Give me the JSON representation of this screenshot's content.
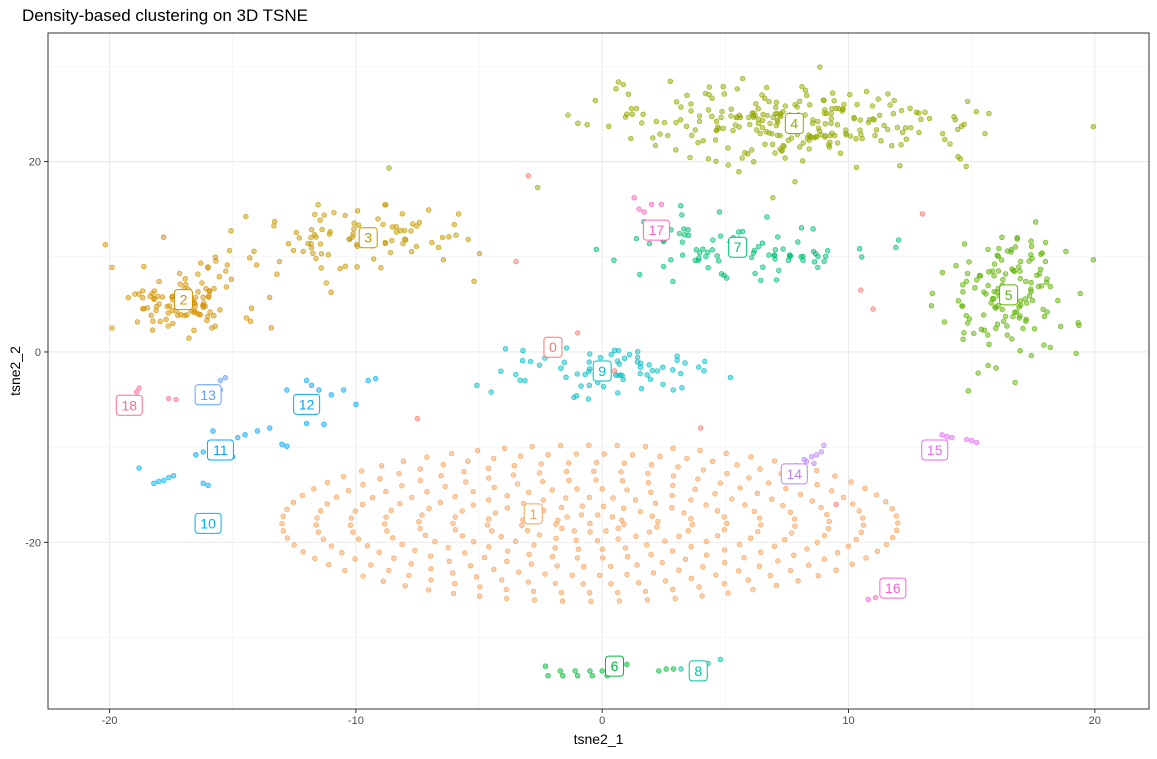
{
  "chart_data": {
    "type": "scatter",
    "title": "Density-based clustering on 3D TSNE",
    "xlabel": "tsne2_1",
    "ylabel": "tsne2_2",
    "xlim": [
      -22.5,
      22.2
    ],
    "ylim": [
      -37.5,
      33.5
    ],
    "xticks": [
      -20,
      -10,
      0,
      10,
      20
    ],
    "yticks": [
      -20,
      0,
      20
    ],
    "xtick_labels": [
      "-20",
      "-10",
      "0",
      "10",
      "20"
    ],
    "ytick_labels": [
      "-20",
      "0",
      "20"
    ],
    "grid": true,
    "legend": "none",
    "clusters": [
      {
        "id": "0",
        "label": "0",
        "color": "#F8766D",
        "center": [
          -2,
          0.5
        ],
        "points": [
          [
            -3,
            18.5
          ],
          [
            -3.5,
            9.5
          ],
          [
            -1,
            2
          ],
          [
            -7.5,
            -7
          ],
          [
            4,
            -8
          ],
          [
            10.5,
            6.5
          ],
          [
            11,
            4.5
          ],
          [
            9.5,
            -16
          ],
          [
            13,
            14.5
          ],
          [
            0.5,
            -2
          ]
        ]
      },
      {
        "id": "1",
        "label": "1",
        "color": "#F8A055",
        "ellipse": {
          "cx": -0.5,
          "cy": -18,
          "rx": 12.5,
          "ry": 8.2
        },
        "center": [
          -2.8,
          -17
        ]
      },
      {
        "id": "2",
        "label": "2",
        "color": "#D39200",
        "center": [
          -17,
          5.5
        ],
        "spread": [
          2.8,
          3.6
        ],
        "n": 110
      },
      {
        "id": "3",
        "label": "3",
        "color": "#C49A00",
        "center": [
          -9.5,
          12
        ],
        "spread": [
          4.5,
          3.5
        ],
        "n": 90
      },
      {
        "id": "4",
        "label": "4",
        "color": "#93AA00",
        "center": [
          7.8,
          24
        ],
        "spread": [
          7,
          3.5
        ],
        "n": 260
      },
      {
        "id": "5",
        "label": "5",
        "color": "#5EB300",
        "center": [
          16.5,
          6
        ],
        "spread": [
          2.3,
          7
        ],
        "n": 140
      },
      {
        "id": "6",
        "label": "6",
        "color": "#00BA38",
        "center": [
          0.5,
          -33
        ],
        "points": [
          [
            -2.3,
            -33
          ],
          [
            -1.7,
            -33.5
          ],
          [
            -1.1,
            -33.5
          ],
          [
            -0.5,
            -33.5
          ],
          [
            0,
            -33.5
          ],
          [
            0.5,
            -33
          ],
          [
            1,
            -32.8
          ],
          [
            -2.2,
            -34
          ],
          [
            -1.6,
            -34
          ],
          [
            -1,
            -34
          ],
          [
            -0.4,
            -34
          ],
          [
            0.2,
            -34
          ],
          [
            2.3,
            -33.5
          ],
          [
            2.6,
            -33.3
          ],
          [
            2.9,
            -33.3
          ]
        ]
      },
      {
        "id": "7",
        "label": "7",
        "color": "#00BF74",
        "center": [
          5.5,
          11
        ],
        "spread": [
          4.5,
          2.8
        ],
        "n": 90
      },
      {
        "id": "8",
        "label": "8",
        "color": "#00C19F",
        "center": [
          3.9,
          -33.5
        ],
        "points": [
          [
            3.8,
            -33
          ],
          [
            4.3,
            -32.7
          ],
          [
            4.8,
            -32.3
          ],
          [
            3.2,
            -33.3
          ]
        ]
      },
      {
        "id": "9",
        "label": "9",
        "color": "#00BFC4",
        "center": [
          0,
          -2
        ],
        "spread": [
          3.8,
          2.5
        ],
        "n": 70
      },
      {
        "id": "10",
        "label": "10",
        "color": "#00B4F0",
        "center": [
          -16,
          -18
        ],
        "points": [
          [
            -18.2,
            -13.8
          ],
          [
            -18,
            -13.6
          ],
          [
            -17.8,
            -13.5
          ],
          [
            -17.6,
            -13.2
          ],
          [
            -17.4,
            -13
          ],
          [
            -18.8,
            -12.2
          ],
          [
            -16.2,
            -13.8
          ],
          [
            -16,
            -14
          ]
        ]
      },
      {
        "id": "11",
        "label": "11",
        "color": "#00A8FF",
        "center": [
          -15.5,
          -10.3
        ],
        "points": [
          [
            -16.5,
            -10.8
          ],
          [
            -16.2,
            -10.5
          ],
          [
            -15.8,
            -10
          ],
          [
            -15.3,
            -9.5
          ],
          [
            -14.8,
            -9
          ],
          [
            -14.5,
            -8.7
          ],
          [
            -14,
            -8.3
          ],
          [
            -13.5,
            -8
          ],
          [
            -15,
            -11
          ],
          [
            -13,
            -9.7
          ],
          [
            -12.8,
            -9.9
          ],
          [
            -15.8,
            -8.3
          ]
        ]
      },
      {
        "id": "12",
        "label": "12",
        "color": "#00A9FF",
        "center": [
          -12,
          -5.5
        ],
        "points": [
          [
            -12,
            -3
          ],
          [
            -11.5,
            -4
          ],
          [
            -11,
            -4.5
          ],
          [
            -10.5,
            -4
          ],
          [
            -10,
            -5.5
          ],
          [
            -12,
            -7.5
          ],
          [
            -11.3,
            -7.6
          ],
          [
            -12.8,
            -4
          ],
          [
            -9.5,
            -3
          ],
          [
            -9.2,
            -2.8
          ],
          [
            -11.8,
            -3.5
          ]
        ]
      },
      {
        "id": "13",
        "label": "13",
        "color": "#619CFF",
        "center": [
          -16,
          -4.5
        ],
        "points": [
          [
            -15.5,
            -3
          ],
          [
            -15.3,
            -2.7
          ],
          [
            -15.7,
            -3.8
          ],
          [
            -15.5,
            -4
          ],
          [
            -16,
            -4.6
          ]
        ]
      },
      {
        "id": "14",
        "label": "14",
        "color": "#B983FF",
        "center": [
          7.8,
          -12.8
        ],
        "points": [
          [
            8.2,
            -11.3
          ],
          [
            8.5,
            -11
          ],
          [
            8.7,
            -10.8
          ],
          [
            8.9,
            -10.5
          ],
          [
            9,
            -9.8
          ],
          [
            8.6,
            -11.7
          ],
          [
            8.3,
            -11.5
          ]
        ]
      },
      {
        "id": "15",
        "label": "15",
        "color": "#E76BF3",
        "center": [
          13.5,
          -10.3
        ],
        "points": [
          [
            13.8,
            -8.7
          ],
          [
            14,
            -8.9
          ],
          [
            14.2,
            -9
          ],
          [
            15,
            -9.3
          ],
          [
            15.2,
            -9.5
          ],
          [
            14.8,
            -9.2
          ]
        ]
      },
      {
        "id": "16",
        "label": "16",
        "color": "#FD61D1",
        "center": [
          11.8,
          -24.8
        ],
        "points": [
          [
            10.8,
            -26
          ],
          [
            11.1,
            -25.8
          ],
          [
            11.4,
            -25.6
          ],
          [
            11.7,
            -25.4
          ]
        ]
      },
      {
        "id": "17",
        "label": "17",
        "color": "#FF62BC",
        "center": [
          2.2,
          12.8
        ],
        "points": [
          [
            1.5,
            15
          ],
          [
            1.7,
            14.7
          ],
          [
            2,
            15.5
          ],
          [
            2.4,
            15.5
          ],
          [
            1.3,
            16.2
          ]
        ]
      },
      {
        "id": "18",
        "label": "18",
        "color": "#FF6C91",
        "center": [
          -19.2,
          -5.6
        ],
        "points": [
          [
            -18.8,
            -3.8
          ],
          [
            -17.6,
            -4.9
          ],
          [
            -17.3,
            -5
          ],
          [
            -18.9,
            -4.2
          ]
        ]
      }
    ]
  }
}
